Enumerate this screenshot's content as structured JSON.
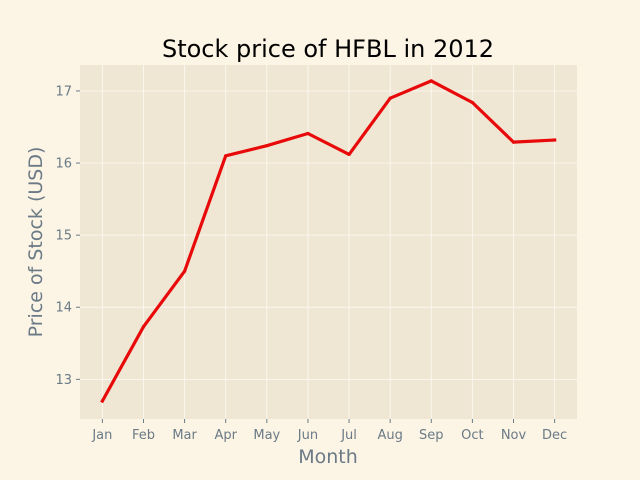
{
  "chart_data": {
    "type": "line",
    "title": "Stock price of HFBL in 2012",
    "xlabel": "Month",
    "ylabel": "Price of Stock (USD)",
    "categories": [
      "Jan",
      "Feb",
      "Mar",
      "Apr",
      "May",
      "Jun",
      "Jul",
      "Aug",
      "Sep",
      "Oct",
      "Nov",
      "Dec"
    ],
    "series": [
      {
        "values": [
          12.7,
          13.73,
          14.5,
          16.1,
          16.24,
          16.41,
          16.12,
          16.9,
          17.14,
          16.84,
          16.29,
          16.32
        ]
      }
    ],
    "ylim": [
      12.45,
      17.36
    ],
    "yticks": [
      13,
      14,
      15,
      16,
      17
    ],
    "grid": true,
    "colors": {
      "line": "#e80a0a",
      "plot_background": "#efe6d3",
      "figure_background": "#fcf4e4",
      "grid": "#fbf7ee"
    }
  }
}
